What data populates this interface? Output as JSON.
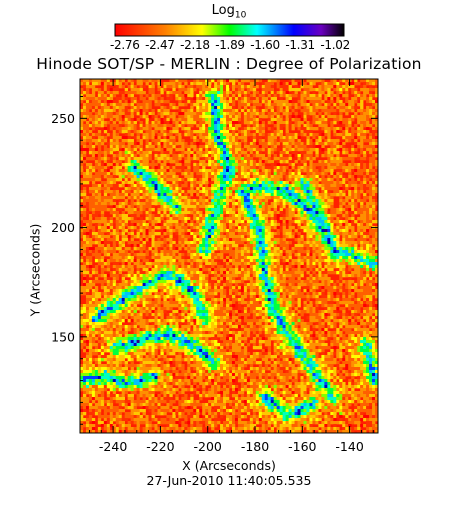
{
  "chart_data": {
    "type": "heatmap",
    "title": "Hinode SOT/SP - MERLIN : Degree of Polarization",
    "xlabel": "X (Arcseconds)",
    "ylabel": "Y (Arcseconds)",
    "timestamp": "27-Jun-2010 11:40:05.535",
    "xlim": [
      -254,
      -128
    ],
    "ylim": [
      106,
      268
    ],
    "x_ticks": [
      "-240",
      "-220",
      "-200",
      "-180",
      "-160",
      "-140"
    ],
    "x_tick_values": [
      -240,
      -220,
      -200,
      -180,
      -160,
      -140
    ],
    "y_ticks": [
      "150",
      "200",
      "250"
    ],
    "y_tick_values": [
      150,
      200,
      250
    ],
    "colorbar": {
      "title": "Log",
      "title_subscript": "10",
      "ticks": [
        "-2.76",
        "-2.47",
        "-2.18",
        "-1.89",
        "-1.60",
        "-1.31",
        "-1.02"
      ],
      "range": [
        -2.76,
        -1.02
      ],
      "colors": [
        "#ff0000",
        "#ff8000",
        "#ffff00",
        "#00ff00",
        "#00ffff",
        "#0000ff",
        "#6a00c0",
        "#000000"
      ]
    }
  }
}
